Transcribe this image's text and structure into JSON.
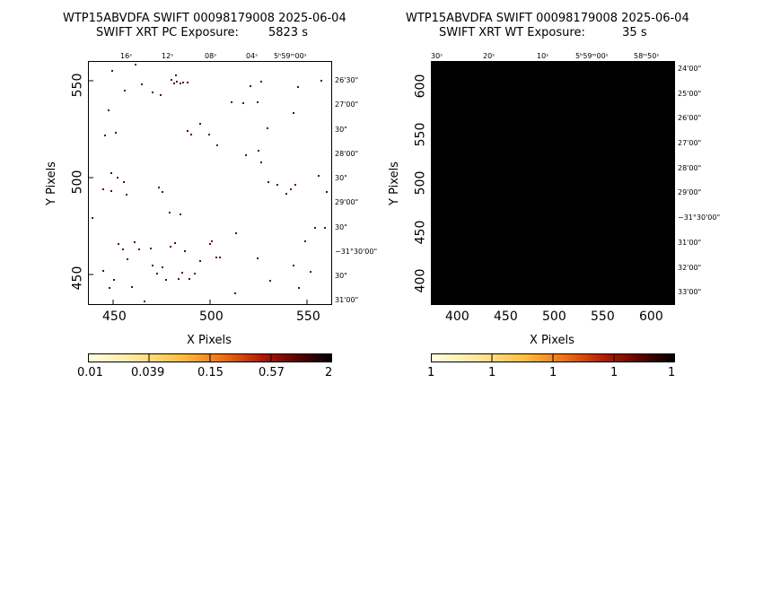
{
  "left_panel": {
    "title_line1": "WTP15ABVDFA SWIFT 00098179008 2025-06-04",
    "title_line2": "SWIFT XRT PC Exposure:        5823 s",
    "xlabel": "X Pixels",
    "ylabel": "Y Pixels",
    "xticks": [
      "450",
      "500",
      "550"
    ],
    "yticks": [
      "450",
      "500",
      "550"
    ],
    "ra_labels": [
      "16ˢ",
      "12ˢ",
      "08ˢ",
      "04ˢ",
      "5ʰ59ᵐ00ˢ"
    ],
    "dec_labels": [
      "26'30\"",
      "27'00\"",
      "30\"",
      "28'00\"",
      "30\"",
      "29'00\"",
      "30\"",
      "−31°30'00\"",
      "30\"",
      "31'00\""
    ],
    "colorbar_labels": [
      "0.01",
      "0.039",
      "0.15",
      "0.57",
      "2"
    ]
  },
  "right_panel": {
    "title_line1": "WTP15ABVDFA SWIFT 00098179008 2025-06-04",
    "title_line2": "SWIFT XRT WT Exposure:          35 s",
    "xlabel": "X Pixels",
    "ylabel": "Y Pixels",
    "xticks": [
      "400",
      "450",
      "500",
      "550",
      "600"
    ],
    "yticks": [
      "400",
      "450",
      "500",
      "550",
      "600"
    ],
    "ra_labels": [
      "30ˢ",
      "20ˢ",
      "10ˢ",
      "5ʰ59ᵐ00ˢ",
      "58ᵐ50ˢ"
    ],
    "dec_labels": [
      "24'00\"",
      "25'00\"",
      "26'00\"",
      "27'00\"",
      "28'00\"",
      "29'00\"",
      "−31°30'00\"",
      "31'00\"",
      "32'00\"",
      "33'00\""
    ],
    "colorbar_labels": [
      "1",
      "1",
      "1",
      "1",
      "1"
    ]
  },
  "colors": {
    "event": "#5a0a00",
    "wt_fill": "#000000"
  }
}
